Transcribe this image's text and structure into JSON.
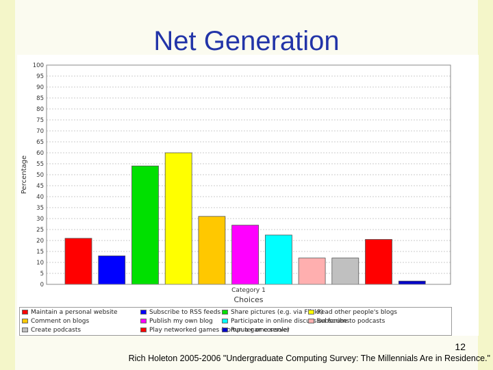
{
  "slide": {
    "title": "Net Generation",
    "page_number": "12",
    "citation": "Rich Holeton 2005-2006 \"Undergraduate Computing Survey: The Millennials Are in Residence.\""
  },
  "chart_data": {
    "type": "bar",
    "title": "",
    "xlabel": "Choices",
    "ylabel": "Percentage",
    "category_label": "Category 1",
    "ylim": [
      0,
      100
    ],
    "yticks": [
      "0",
      "5",
      "10",
      "15",
      "20",
      "25",
      "30",
      "35",
      "40",
      "45",
      "50",
      "55",
      "60",
      "65",
      "70",
      "75",
      "80",
      "85",
      "90",
      "95",
      "100"
    ],
    "grid": true,
    "legend_position": "bottom",
    "series": [
      {
        "name": "Maintain a personal website",
        "values": [
          21
        ],
        "color": "#ff0000"
      },
      {
        "name": "Subscribe to RSS feeds",
        "values": [
          13
        ],
        "color": "#0000ff"
      },
      {
        "name": "Share pictures (e.g. via Flickr)",
        "values": [
          54
        ],
        "color": "#00e000"
      },
      {
        "name": "Read other people's blogs",
        "values": [
          60
        ],
        "color": "#ffff00"
      },
      {
        "name": "Comment on blogs",
        "values": [
          31
        ],
        "color": "#ffc800"
      },
      {
        "name": "Publish my own blog",
        "values": [
          27
        ],
        "color": "#ff00ff"
      },
      {
        "name": "Participate in online discussion forums",
        "values": [
          22.5
        ],
        "color": "#00ffff"
      },
      {
        "name": "Subscribe to podcasts",
        "values": [
          12
        ],
        "color": "#ffafaf"
      },
      {
        "name": "Create podcasts",
        "values": [
          12
        ],
        "color": "#c0c0c0"
      },
      {
        "name": "Play networked games (computer or console)",
        "values": [
          20.5
        ],
        "color": "#ff0000"
      },
      {
        "name": "Run a game server",
        "values": [
          1.5
        ],
        "color": "#0000c8"
      }
    ]
  }
}
